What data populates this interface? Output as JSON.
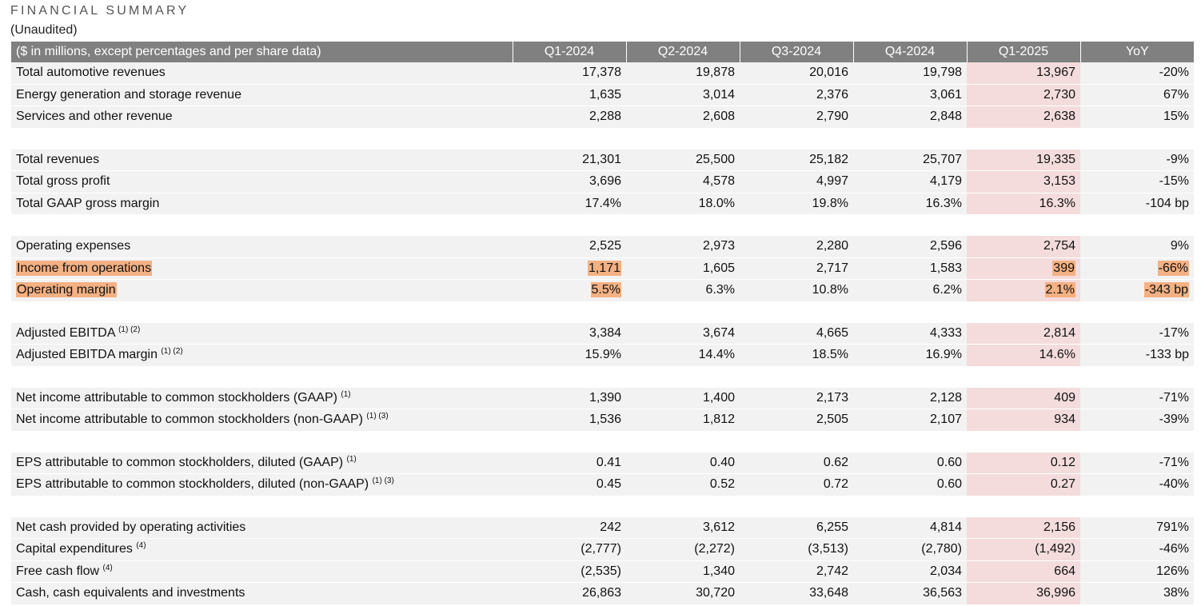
{
  "header": {
    "title": "FINANCIAL SUMMARY",
    "subtitle": "(Unaudited)"
  },
  "table": {
    "columns": [
      "($ in millions, except percentages and per share data)",
      "Q1-2024",
      "Q2-2024",
      "Q3-2024",
      "Q4-2024",
      "Q1-2025",
      "YoY"
    ],
    "sections": [
      {
        "rows": [
          {
            "label": "Total automotive revenues",
            "note": "",
            "values": [
              "17,378",
              "19,878",
              "20,016",
              "19,798",
              "13,967",
              "-20%"
            ]
          },
          {
            "label": "Energy generation and storage revenue",
            "note": "",
            "values": [
              "1,635",
              "3,014",
              "2,376",
              "3,061",
              "2,730",
              "67%"
            ]
          },
          {
            "label": "Services and other revenue",
            "note": "",
            "values": [
              "2,288",
              "2,608",
              "2,790",
              "2,848",
              "2,638",
              "15%"
            ]
          }
        ]
      },
      {
        "rows": [
          {
            "label": "Total revenues",
            "note": "",
            "values": [
              "21,301",
              "25,500",
              "25,182",
              "25,707",
              "19,335",
              "-9%"
            ]
          },
          {
            "label": "Total gross profit",
            "note": "",
            "values": [
              "3,696",
              "4,578",
              "4,997",
              "4,179",
              "3,153",
              "-15%"
            ]
          },
          {
            "label": "Total GAAP gross margin",
            "note": "",
            "values": [
              "17.4%",
              "18.0%",
              "19.8%",
              "16.3%",
              "16.3%",
              "-104 bp"
            ]
          }
        ]
      },
      {
        "rows": [
          {
            "label": "Operating expenses",
            "note": "",
            "values": [
              "2,525",
              "2,973",
              "2,280",
              "2,596",
              "2,754",
              "9%"
            ]
          },
          {
            "label": "Income from operations",
            "note": "",
            "values": [
              "1,171",
              "1,605",
              "2,717",
              "1,583",
              "399",
              "-66%"
            ],
            "highlight": true
          },
          {
            "label": "Operating margin",
            "note": "",
            "values": [
              "5.5%",
              "6.3%",
              "10.8%",
              "6.2%",
              "2.1%",
              "-343 bp"
            ],
            "highlight": true
          }
        ]
      },
      {
        "rows": [
          {
            "label": "Adjusted EBITDA",
            "note": "(1) (2)",
            "values": [
              "3,384",
              "3,674",
              "4,665",
              "4,333",
              "2,814",
              "-17%"
            ]
          },
          {
            "label": "Adjusted EBITDA margin",
            "note": "(1) (2)",
            "values": [
              "15.9%",
              "14.4%",
              "18.5%",
              "16.9%",
              "14.6%",
              "-133 bp"
            ]
          }
        ]
      },
      {
        "rows": [
          {
            "label": "Net income attributable to common stockholders (GAAP)",
            "note": "(1)",
            "values": [
              "1,390",
              "1,400",
              "2,173",
              "2,128",
              "409",
              "-71%"
            ]
          },
          {
            "label": "Net income attributable to common stockholders (non-GAAP)",
            "note": "(1) (3)",
            "values": [
              "1,536",
              "1,812",
              "2,505",
              "2,107",
              "934",
              "-39%"
            ]
          }
        ]
      },
      {
        "rows": [
          {
            "label": "EPS attributable to common stockholders, diluted (GAAP)",
            "note": "(1)",
            "values": [
              "0.41",
              "0.40",
              "0.62",
              "0.60",
              "0.12",
              "-71%"
            ]
          },
          {
            "label": "EPS attributable to common stockholders, diluted (non-GAAP)",
            "note": "(1) (3)",
            "values": [
              "0.45",
              "0.52",
              "0.72",
              "0.60",
              "0.27",
              "-40%"
            ]
          }
        ]
      },
      {
        "rows": [
          {
            "label": "Net cash provided by operating activities",
            "note": "",
            "values": [
              "242",
              "3,612",
              "6,255",
              "4,814",
              "2,156",
              "791%"
            ]
          },
          {
            "label": "Capital expenditures",
            "note": "(4)",
            "values": [
              "(2,777)",
              "(2,272)",
              "(3,513)",
              "(2,780)",
              "(1,492)",
              "-46%"
            ]
          },
          {
            "label": "Free cash flow",
            "note": "(4)",
            "values": [
              "(2,535)",
              "1,340",
              "2,742",
              "2,034",
              "664",
              "126%"
            ]
          },
          {
            "label": "Cash, cash equivalents and investments",
            "note": "",
            "values": [
              "26,863",
              "30,720",
              "33,648",
              "36,563",
              "36,996",
              "38%"
            ]
          }
        ]
      }
    ]
  },
  "colors": {
    "header_bg": "#808080",
    "row_bg": "#f2f2f2",
    "q1_2025_bg": "#f4dcdc",
    "highlight": "#f4b183"
  }
}
